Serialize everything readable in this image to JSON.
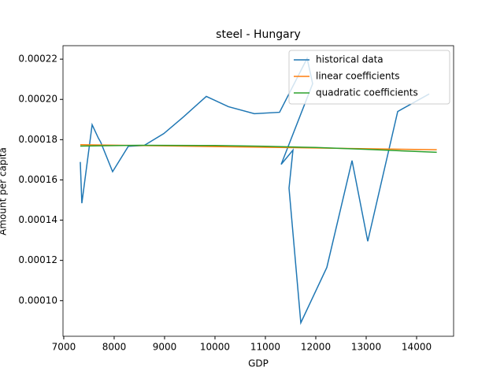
{
  "chart_data": {
    "type": "line",
    "title": "steel - Hungary",
    "x_label": "GDP",
    "y_label": "Amount per capita",
    "xlim": [
      6985,
      14734
    ],
    "ylim": [
      8.23e-05,
      0.0002267
    ],
    "xticks": [
      7000,
      8000,
      9000,
      10000,
      11000,
      12000,
      13000,
      14000
    ],
    "yticks": [
      {
        "value": 0.0001,
        "label": "0.00010"
      },
      {
        "value": 0.00012,
        "label": "0.00012"
      },
      {
        "value": 0.00014,
        "label": "0.00014"
      },
      {
        "value": 0.00016,
        "label": "0.00016"
      },
      {
        "value": 0.00018,
        "label": "0.00018"
      },
      {
        "value": 0.0002,
        "label": "0.00020"
      },
      {
        "value": 0.00022,
        "label": "0.00022"
      }
    ],
    "legend": "upper right",
    "series": [
      {
        "name": "historical data",
        "color": "#1f77b4",
        "x": [
          7328,
          7359,
          7563,
          7688,
          7734,
          7969,
          8281,
          8594,
          8984,
          9375,
          9828,
          10266,
          10781,
          11281,
          11828,
          11938,
          11313,
          11547,
          11469,
          11703,
          12219,
          12719,
          13031,
          13625,
          14250
        ],
        "values": [
          0.0001689,
          0.0001484,
          0.0001874,
          0.0001807,
          0.0001787,
          0.0001641,
          0.0001767,
          0.0001771,
          0.000183,
          0.0001913,
          0.0002015,
          0.0001964,
          0.0001929,
          0.0001936,
          0.0002204,
          0.0002078,
          0.0001677,
          0.0001748,
          0.0001559,
          8.9e-05,
          0.0001165,
          0.0001696,
          0.0001295,
          0.000194,
          0.0002027
        ]
      },
      {
        "name": "linear coefficients",
        "color": "#ff7f0e",
        "x": [
          7328,
          14400
        ],
        "values": [
          0.0001775,
          0.000175
        ]
      },
      {
        "name": "quadratic coefficients",
        "color": "#2ca02c",
        "x": [
          7328,
          8500,
          10000,
          11000,
          12000,
          13000,
          14400
        ],
        "values": [
          0.0001768,
          0.0001772,
          0.0001771,
          0.0001767,
          0.0001761,
          0.0001752,
          0.0001737
        ]
      }
    ]
  }
}
